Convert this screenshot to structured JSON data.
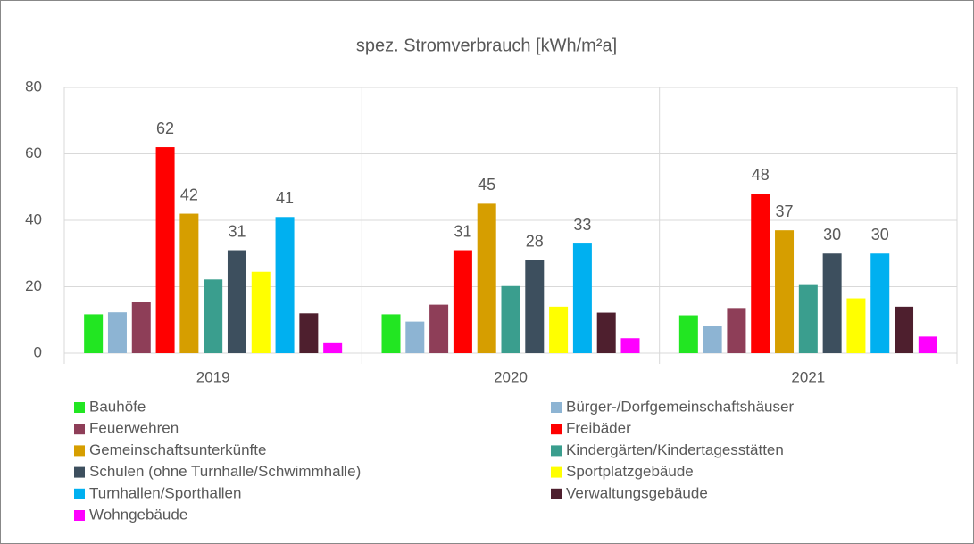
{
  "chart_data": {
    "type": "bar",
    "title": "spez. Stromverbrauch [kWh/m²a]",
    "categories": [
      "2019",
      "2020",
      "2021"
    ],
    "series": [
      {
        "name": "Bauhöfe",
        "color": "#22e622",
        "values": [
          11.7,
          11.7,
          11.4
        ]
      },
      {
        "name": "Bürger-/Dorfgemeinschaftshäuser",
        "color": "#8db4d3",
        "values": [
          12.3,
          9.5,
          8.3
        ]
      },
      {
        "name": "Feuerwehren",
        "color": "#8e3e58",
        "values": [
          15.3,
          14.6,
          13.6
        ]
      },
      {
        "name": "Freibäder",
        "color": "#ff0000",
        "values": [
          62,
          31,
          48
        ],
        "data_labels": true
      },
      {
        "name": "Gemeinschaftsunterkünfte",
        "color": "#d69e00",
        "values": [
          42,
          45,
          37
        ],
        "data_labels": true
      },
      {
        "name": "Kindergärten/Kindertagesstätten",
        "color": "#3a9e8e",
        "values": [
          22.2,
          20.2,
          20.5
        ]
      },
      {
        "name": "Schulen (ohne Turnhalle/Schwimmhalle)",
        "color": "#3d4f5e",
        "values": [
          31,
          28,
          30
        ],
        "data_labels": true
      },
      {
        "name": "Sportplatzgebäude",
        "color": "#ffff00",
        "values": [
          24.5,
          14,
          16.5
        ]
      },
      {
        "name": "Turnhallen/Sporthallen",
        "color": "#00b0f0",
        "values": [
          41,
          33,
          30
        ],
        "data_labels": true
      },
      {
        "name": "Verwaltungsgebäude",
        "color": "#4e1f2e",
        "values": [
          12,
          12.2,
          14
        ]
      },
      {
        "name": "Wohngebäude",
        "color": "#ff00ff",
        "values": [
          3,
          4.5,
          5
        ]
      }
    ],
    "ylim": [
      0,
      80
    ],
    "yticks": [
      0,
      20,
      40,
      60,
      80
    ],
    "grid": true,
    "legend": "bottom"
  }
}
